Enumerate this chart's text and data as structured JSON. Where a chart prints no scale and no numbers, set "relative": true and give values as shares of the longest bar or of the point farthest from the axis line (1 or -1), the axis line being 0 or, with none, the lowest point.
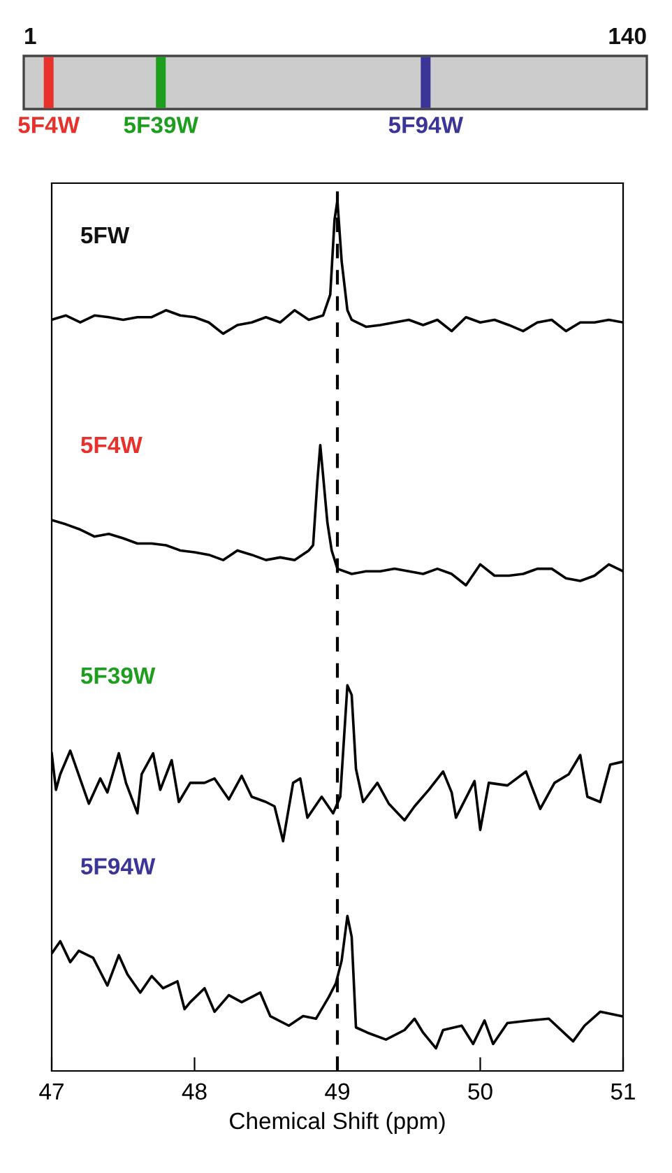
{
  "chart_data": [
    {
      "type": "other",
      "annotations": [
        "1",
        "140",
        "5F4W",
        "5F39W",
        "5F94W"
      ],
      "colors": [
        "#111111",
        "#111111",
        "#e8312a",
        "#1e9e1e",
        "#3a3597"
      ]
    },
    {
      "type": "line",
      "xlabel": "Chemical Shift (ppm)",
      "xlim": [
        47,
        51
      ],
      "xticks": [
        47,
        48,
        49,
        50,
        51
      ],
      "relative": true,
      "grid": false,
      "marker": "none",
      "line_style": "solid",
      "annotations": [
        "5FW",
        "5F4W",
        "5F39W",
        "5F94W"
      ],
      "colors": [
        "#111111",
        "#e8312a",
        "#1e9e1e",
        "#3a3597"
      ],
      "ref_lines": [
        {
          "axis": "x",
          "value": 49,
          "line_style": "dashed",
          "color": "#000000"
        }
      ],
      "series": [
        {
          "color": "#000000",
          "x": [
            47.0,
            47.1,
            47.2,
            47.3,
            47.4,
            47.5,
            47.6,
            47.7,
            47.8,
            47.9,
            48.0,
            48.1,
            48.2,
            48.3,
            48.4,
            48.5,
            48.6,
            48.7,
            48.8,
            48.9,
            48.95,
            48.98,
            49.0,
            49.03,
            49.07,
            49.1,
            49.2,
            49.3,
            49.4,
            49.5,
            49.6,
            49.7,
            49.8,
            49.9,
            50.0,
            50.1,
            50.2,
            50.3,
            50.4,
            50.5,
            50.6,
            50.7,
            50.8,
            50.9,
            51.0
          ],
          "values": [
            0.863,
            0.868,
            0.86,
            0.868,
            0.866,
            0.863,
            0.866,
            0.866,
            0.874,
            0.868,
            0.866,
            0.86,
            0.847,
            0.857,
            0.86,
            0.866,
            0.86,
            0.874,
            0.863,
            0.868,
            0.892,
            0.978,
            1.0,
            0.93,
            0.874,
            0.863,
            0.855,
            0.857,
            0.86,
            0.863,
            0.857,
            0.863,
            0.85,
            0.866,
            0.86,
            0.863,
            0.857,
            0.85,
            0.86,
            0.863,
            0.85,
            0.86,
            0.86,
            0.863,
            0.86
          ]
        },
        {
          "color": "#000000",
          "x": [
            47.0,
            47.1,
            47.2,
            47.3,
            47.4,
            47.5,
            47.6,
            47.7,
            47.8,
            47.9,
            48.0,
            48.1,
            48.2,
            48.3,
            48.4,
            48.5,
            48.6,
            48.7,
            48.8,
            48.83,
            48.86,
            48.88,
            48.9,
            48.93,
            48.96,
            49.0,
            49.1,
            49.2,
            49.3,
            49.4,
            49.5,
            49.6,
            49.7,
            49.8,
            49.9,
            50.0,
            50.1,
            50.2,
            50.3,
            50.4,
            50.5,
            50.6,
            50.7,
            50.8,
            50.9,
            51.0
          ],
          "values": [
            0.633,
            0.628,
            0.622,
            0.614,
            0.617,
            0.612,
            0.606,
            0.606,
            0.604,
            0.598,
            0.596,
            0.593,
            0.587,
            0.598,
            0.593,
            0.587,
            0.59,
            0.587,
            0.598,
            0.604,
            0.678,
            0.719,
            0.684,
            0.63,
            0.598,
            0.577,
            0.571,
            0.574,
            0.574,
            0.577,
            0.574,
            0.571,
            0.577,
            0.571,
            0.558,
            0.582,
            0.569,
            0.569,
            0.571,
            0.577,
            0.577,
            0.566,
            0.563,
            0.569,
            0.582,
            0.574
          ]
        },
        {
          "color": "#000000",
          "x": [
            47.0,
            47.03,
            47.06,
            47.13,
            47.26,
            47.34,
            47.39,
            47.47,
            47.52,
            47.6,
            47.63,
            47.71,
            47.76,
            47.84,
            47.89,
            47.97,
            48.07,
            48.14,
            48.24,
            48.33,
            48.4,
            48.5,
            48.56,
            48.62,
            48.69,
            48.74,
            48.79,
            48.89,
            48.97,
            49.02,
            49.07,
            49.1,
            49.13,
            49.18,
            49.28,
            49.36,
            49.47,
            49.54,
            49.64,
            49.74,
            49.8,
            49.83,
            49.96,
            50.0,
            50.06,
            50.19,
            50.32,
            50.42,
            50.52,
            50.62,
            50.7,
            50.75,
            50.84,
            50.91,
            50.99
          ],
          "values": [
            0.365,
            0.323,
            0.341,
            0.368,
            0.307,
            0.336,
            0.32,
            0.365,
            0.331,
            0.296,
            0.341,
            0.365,
            0.323,
            0.357,
            0.309,
            0.331,
            0.331,
            0.336,
            0.312,
            0.339,
            0.315,
            0.309,
            0.304,
            0.264,
            0.331,
            0.336,
            0.291,
            0.315,
            0.296,
            0.315,
            0.443,
            0.432,
            0.347,
            0.309,
            0.331,
            0.307,
            0.288,
            0.304,
            0.323,
            0.344,
            0.32,
            0.291,
            0.333,
            0.277,
            0.331,
            0.328,
            0.344,
            0.301,
            0.331,
            0.341,
            0.363,
            0.315,
            0.309,
            0.352,
            0.355
          ]
        },
        {
          "color": "#000000",
          "x": [
            47.0,
            47.06,
            47.13,
            47.19,
            47.29,
            47.39,
            47.47,
            47.53,
            47.62,
            47.7,
            47.78,
            47.88,
            47.93,
            47.97,
            48.07,
            48.14,
            48.24,
            48.33,
            48.46,
            48.53,
            48.66,
            48.76,
            48.85,
            48.94,
            48.99,
            49.03,
            49.07,
            49.1,
            49.13,
            49.21,
            49.34,
            49.47,
            49.54,
            49.6,
            49.69,
            49.74,
            49.87,
            49.95,
            50.03,
            50.09,
            50.19,
            50.35,
            50.48,
            50.65,
            50.73,
            50.84,
            50.99
          ],
          "values": [
            0.135,
            0.149,
            0.125,
            0.138,
            0.13,
            0.098,
            0.133,
            0.111,
            0.09,
            0.109,
            0.095,
            0.103,
            0.071,
            0.079,
            0.095,
            0.068,
            0.087,
            0.079,
            0.09,
            0.063,
            0.052,
            0.063,
            0.06,
            0.085,
            0.101,
            0.127,
            0.178,
            0.154,
            0.05,
            0.044,
            0.036,
            0.047,
            0.06,
            0.044,
            0.026,
            0.047,
            0.052,
            0.031,
            0.058,
            0.031,
            0.055,
            0.058,
            0.06,
            0.034,
            0.052,
            0.068,
            0.063
          ]
        }
      ]
    }
  ]
}
